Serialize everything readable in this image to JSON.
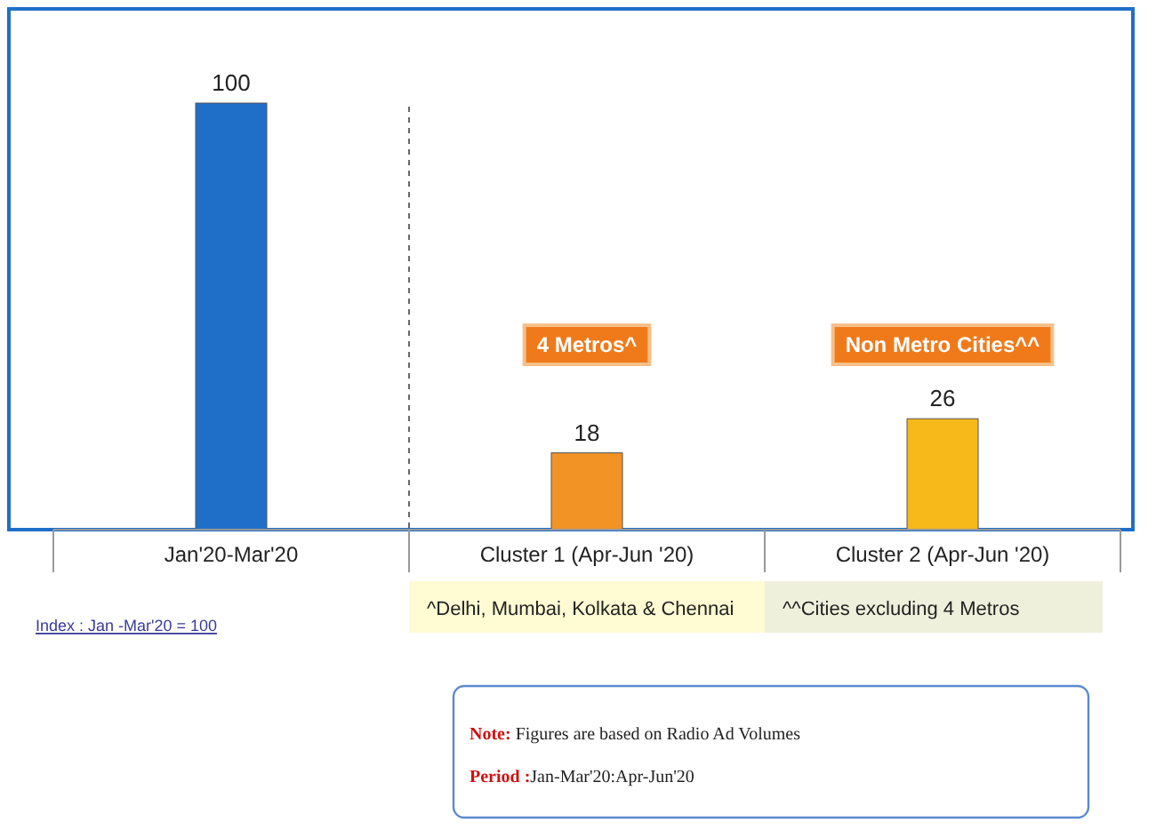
{
  "chart_data": {
    "type": "bar",
    "categories": [
      "Jan'20-Mar'20",
      "Cluster 1 (Apr-Jun '20)",
      "Cluster 2 (Apr-Jun '20)"
    ],
    "values": [
      100,
      18,
      26
    ],
    "colors": [
      "#1f6fc9",
      "#f29326",
      "#f7b81a"
    ],
    "data_labels": true,
    "annotations": [
      "4 Metros^",
      "Non Metro Cities^^",
      "^Delhi, Mumbai, Kolkata & Chennai",
      "^^Cities excluding 4 Metros",
      "Index : Jan -Mar'20 = 100",
      "Note: Figures are based on Radio Ad Volumes",
      "Period :Jan-Mar'20:Apr-Jun'20"
    ]
  }
}
